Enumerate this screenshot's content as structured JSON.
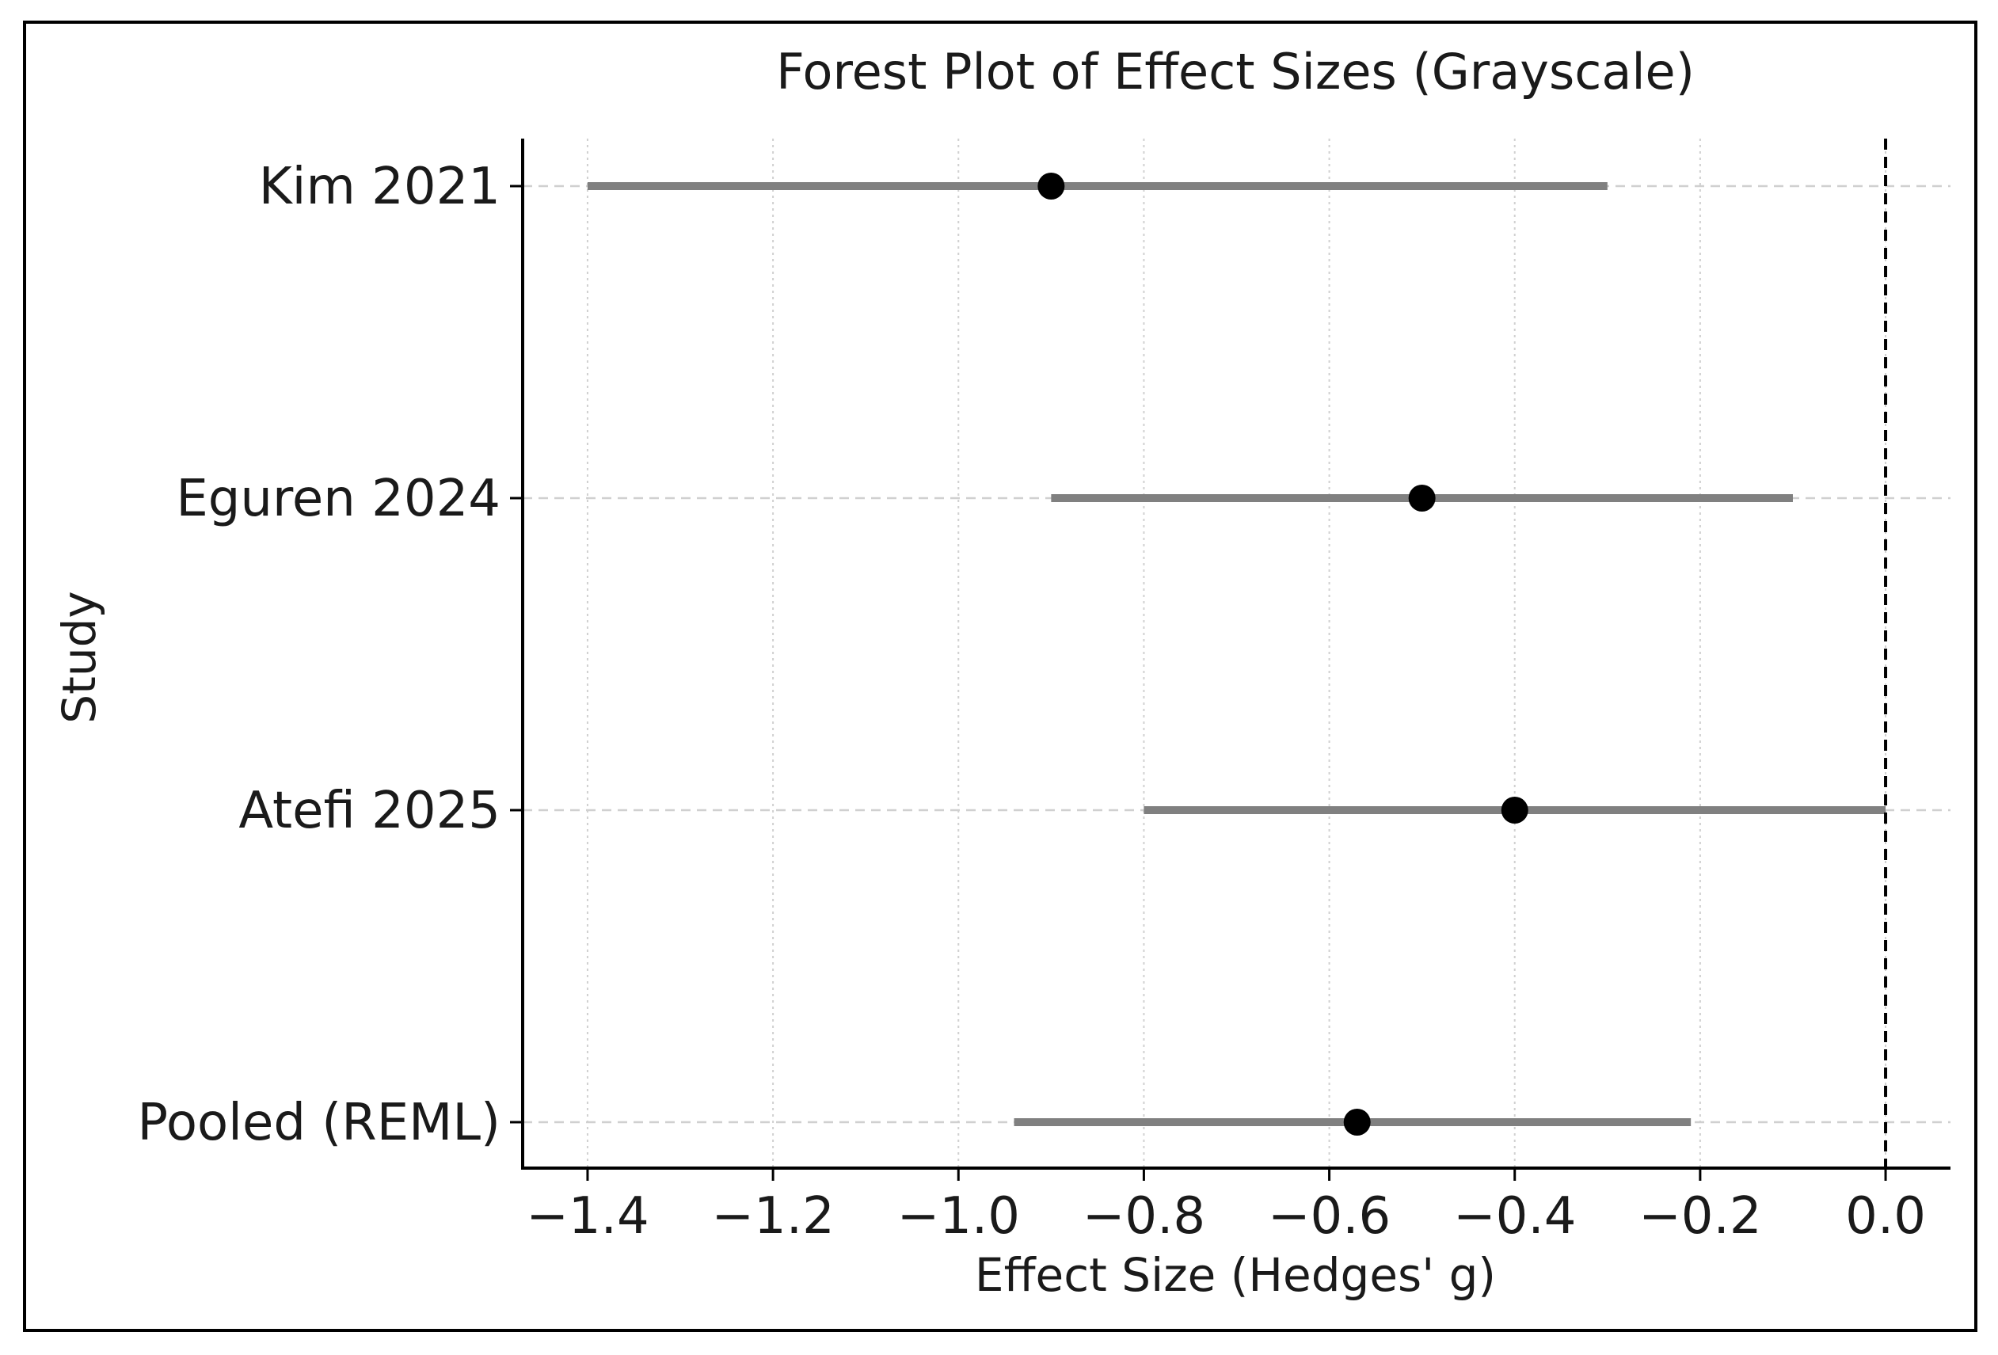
{
  "chart_data": {
    "type": "forest",
    "title": "Forest Plot of Effect Sizes (Grayscale)",
    "xlabel": "Effect Size (Hedges' g)",
    "ylabel": "Study",
    "xlim": [
      -1.47,
      0.07
    ],
    "xticks": [
      -1.4,
      -1.2,
      -1.0,
      -0.8,
      -0.6,
      -0.4,
      -0.2,
      0.0
    ],
    "xtick_labels": [
      "−1.4",
      "−1.2",
      "−1.0",
      "−0.8",
      "−0.6",
      "−0.4",
      "−0.2",
      "0.0"
    ],
    "reference_line": 0.0,
    "grid": true,
    "studies": [
      {
        "label": "Kim 2021",
        "estimate": -0.9,
        "ci_lower": -1.4,
        "ci_upper": -0.3
      },
      {
        "label": "Eguren 2024",
        "estimate": -0.5,
        "ci_lower": -0.9,
        "ci_upper": -0.1
      },
      {
        "label": "Atefi 2025",
        "estimate": -0.4,
        "ci_lower": -0.8,
        "ci_upper": 0.0
      },
      {
        "label": "Pooled (REML)",
        "estimate": -0.57,
        "ci_lower": -0.94,
        "ci_upper": -0.21
      }
    ],
    "colors": {
      "ci_line": "#808080",
      "point": "#000000",
      "grid": "#d0d0d0",
      "axis": "#000000",
      "text": "#1a1a1a"
    }
  }
}
